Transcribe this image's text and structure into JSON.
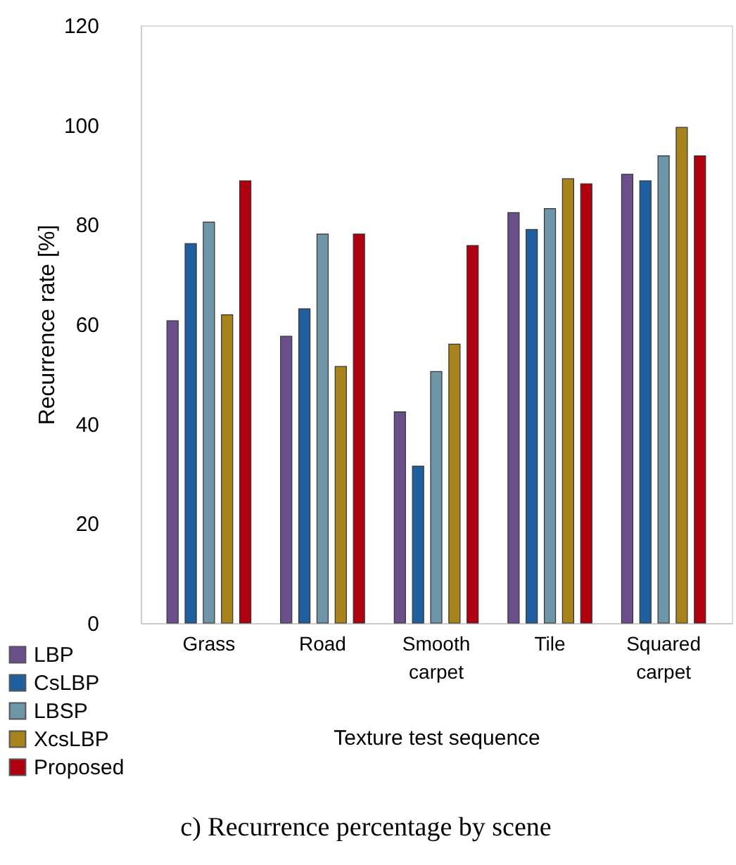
{
  "chart_data": {
    "type": "bar",
    "title": "c) Recurrence percentage by scene",
    "xlabel": "Texture test sequence",
    "ylabel": "Recurrence rate [%]",
    "categories": [
      "Grass",
      "Road",
      "Smooth carpet",
      "Tile",
      "Squared carpet"
    ],
    "series": [
      {
        "name": "LBP",
        "color": "#6a4f8a",
        "values": [
          60.7,
          57.6,
          42.4,
          82.4,
          90.1
        ]
      },
      {
        "name": "CsLBP",
        "color": "#1f5fa0",
        "values": [
          76.2,
          63.1,
          31.5,
          79.0,
          88.8
        ]
      },
      {
        "name": "LBSP",
        "color": "#6f95a8",
        "values": [
          80.5,
          78.1,
          50.5,
          83.2,
          93.8
        ]
      },
      {
        "name": "XcsLBP",
        "color": "#a8821a",
        "values": [
          61.9,
          51.5,
          56.0,
          89.2,
          99.5
        ]
      },
      {
        "name": "Proposed",
        "color": "#b00010",
        "values": [
          88.8,
          78.1,
          75.8,
          88.2,
          93.8
        ]
      }
    ],
    "ylim": [
      0,
      120
    ],
    "yticks": [
      0,
      20,
      40,
      60,
      80,
      100,
      120
    ],
    "grid": false,
    "legend": "bottom left"
  }
}
